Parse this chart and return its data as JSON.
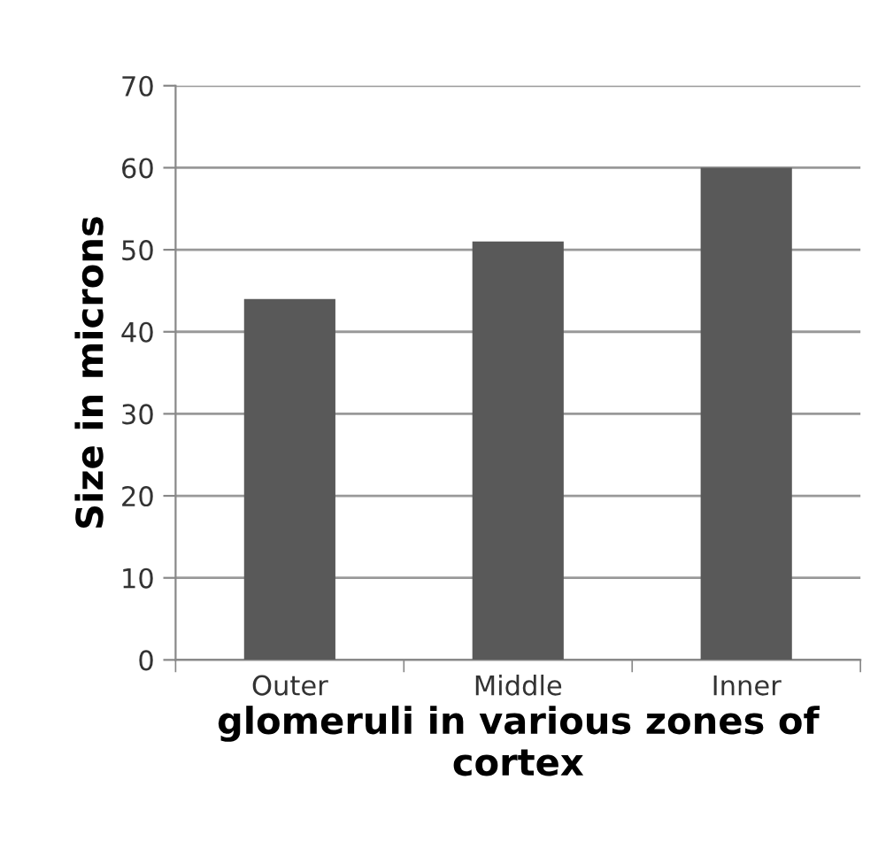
{
  "chart_data": {
    "type": "bar",
    "xlabel": "glomeruli in various zones of cortex",
    "ylabel": "Size in microns",
    "categories": [
      "Outer",
      "Middle",
      "Inner"
    ],
    "series": [
      {
        "color": "#595959",
        "values": [
          44,
          51,
          60
        ]
      }
    ],
    "ylim": [
      0,
      70
    ],
    "yticks": [
      0,
      10,
      20,
      30,
      40,
      50,
      60,
      70
    ],
    "grid": "y",
    "legend": false
  }
}
